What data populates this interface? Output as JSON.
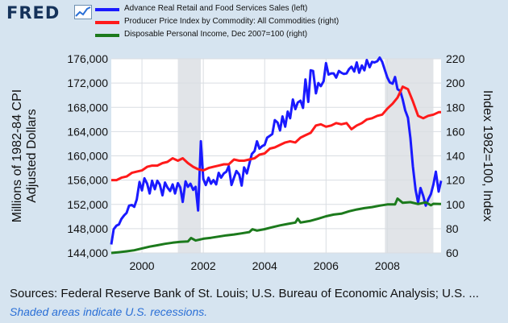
{
  "brand": {
    "name": "FRED",
    "logo_icon": "line-chart-icon"
  },
  "sources_text": "Sources: Federal Reserve Bank of St. Louis; U.S. Bureau of Economic Analysis; U.S. ...",
  "recession_note": "Shaded areas indicate U.S. recessions.",
  "colors": {
    "background": "#d6e4f0",
    "plot_background": "#ffffff",
    "recession": "#e1e4e8",
    "grid": "#d9dde2",
    "brand": "#15325a",
    "note": "#2a6fd6"
  },
  "chart_data": {
    "type": "line",
    "title": "",
    "xlabel": "",
    "ylabel": "Millions of 1982-84 CPI Adjusted Dollars",
    "y2label": "Index 1982=100, Index",
    "xlim": [
      1999.0,
      2009.75
    ],
    "ylim": [
      144000,
      176000
    ],
    "y2lim": [
      60,
      220
    ],
    "x_ticks": [
      2000,
      2002,
      2004,
      2006,
      2008
    ],
    "x_tick_labels": [
      "2000",
      "2002",
      "2004",
      "2006",
      "2008"
    ],
    "y_ticks": [
      144000,
      148000,
      152000,
      156000,
      160000,
      164000,
      168000,
      172000,
      176000
    ],
    "y_tick_labels": [
      "144,000",
      "148,000",
      "152,000",
      "156,000",
      "160,000",
      "164,000",
      "168,000",
      "172,000",
      "176,000"
    ],
    "y2_ticks": [
      60,
      80,
      100,
      120,
      140,
      160,
      180,
      200,
      220
    ],
    "y2_tick_labels": [
      "60",
      "80",
      "100",
      "120",
      "140",
      "160",
      "180",
      "200",
      "220"
    ],
    "grid": true,
    "legend_position": "top",
    "recessions": [
      [
        2001.17,
        2001.92
      ],
      [
        2007.92,
        2009.5
      ]
    ],
    "series": [
      {
        "name": "Advance Real Retail and Food Services Sales (left)",
        "axis": "left",
        "color": "#1a1aff",
        "x": [
          1999.0,
          1999.08,
          1999.17,
          1999.25,
          1999.33,
          1999.42,
          1999.5,
          1999.58,
          1999.67,
          1999.75,
          1999.83,
          1999.92,
          2000.0,
          2000.08,
          2000.17,
          2000.25,
          2000.33,
          2000.42,
          2000.5,
          2000.58,
          2000.67,
          2000.75,
          2000.83,
          2000.92,
          2001.0,
          2001.08,
          2001.17,
          2001.25,
          2001.33,
          2001.42,
          2001.5,
          2001.58,
          2001.67,
          2001.75,
          2001.83,
          2001.92,
          2002.0,
          2002.08,
          2002.17,
          2002.25,
          2002.33,
          2002.42,
          2002.5,
          2002.58,
          2002.67,
          2002.75,
          2002.83,
          2002.92,
          2003.0,
          2003.08,
          2003.17,
          2003.25,
          2003.33,
          2003.42,
          2003.5,
          2003.58,
          2003.67,
          2003.75,
          2003.83,
          2003.92,
          2004.0,
          2004.08,
          2004.17,
          2004.25,
          2004.33,
          2004.42,
          2004.5,
          2004.58,
          2004.67,
          2004.75,
          2004.83,
          2004.92,
          2005.0,
          2005.08,
          2005.17,
          2005.25,
          2005.33,
          2005.42,
          2005.5,
          2005.58,
          2005.67,
          2005.75,
          2005.83,
          2005.92,
          2006.0,
          2006.08,
          2006.17,
          2006.25,
          2006.33,
          2006.42,
          2006.5,
          2006.58,
          2006.67,
          2006.75,
          2006.83,
          2006.92,
          2007.0,
          2007.08,
          2007.17,
          2007.25,
          2007.33,
          2007.42,
          2007.5,
          2007.58,
          2007.67,
          2007.75,
          2007.83,
          2007.92,
          2008.0,
          2008.08,
          2008.17,
          2008.25,
          2008.33,
          2008.42,
          2008.5,
          2008.58,
          2008.67,
          2008.75,
          2008.83,
          2008.92,
          2009.0,
          2009.08,
          2009.17,
          2009.25,
          2009.33,
          2009.42,
          2009.5,
          2009.58,
          2009.67,
          2009.75
        ],
        "values": [
          145400,
          147900,
          148500,
          148700,
          149600,
          150200,
          150600,
          151800,
          151900,
          151600,
          152800,
          155700,
          154300,
          156300,
          155400,
          153800,
          155900,
          154500,
          155900,
          155300,
          153500,
          155600,
          154800,
          154200,
          155300,
          153800,
          155500,
          154800,
          152400,
          155800,
          154900,
          155400,
          154400,
          154900,
          151000,
          162400,
          156200,
          155200,
          156400,
          155400,
          156000,
          155300,
          157200,
          156400,
          157100,
          157400,
          158300,
          155200,
          156400,
          157500,
          156900,
          155100,
          158100,
          157100,
          158700,
          160300,
          160800,
          162400,
          161200,
          161600,
          161800,
          163000,
          163300,
          163600,
          165900,
          165500,
          164200,
          166500,
          164800,
          167300,
          166200,
          169300,
          167700,
          168800,
          169100,
          167900,
          172600,
          168900,
          174100,
          174000,
          170300,
          172000,
          171500,
          172300,
          175300,
          173400,
          173600,
          173600,
          172900,
          174000,
          173700,
          173500,
          173600,
          174300,
          174700,
          173900,
          175400,
          173700,
          174900,
          174100,
          175800,
          174600,
          175500,
          175400,
          175600,
          176200,
          175500,
          174100,
          172900,
          172100,
          171900,
          173000,
          171000,
          170700,
          169300,
          167500,
          166300,
          162900,
          158300,
          154400,
          152300,
          154700,
          153400,
          151800,
          152800,
          153700,
          155300,
          157400,
          154100,
          155900
        ]
      },
      {
        "name": "Producer Price Index by Commodity: All Commodities (right)",
        "axis": "right",
        "color": "#ff1a1a",
        "x": [
          1999.0,
          1999.17,
          1999.33,
          1999.5,
          1999.67,
          1999.83,
          2000.0,
          2000.17,
          2000.33,
          2000.5,
          2000.67,
          2000.83,
          2001.0,
          2001.17,
          2001.33,
          2001.5,
          2001.67,
          2001.83,
          2002.0,
          2002.17,
          2002.33,
          2002.5,
          2002.67,
          2002.83,
          2003.0,
          2003.17,
          2003.33,
          2003.5,
          2003.67,
          2003.83,
          2004.0,
          2004.17,
          2004.33,
          2004.5,
          2004.67,
          2004.83,
          2005.0,
          2005.17,
          2005.33,
          2005.5,
          2005.67,
          2005.83,
          2006.0,
          2006.17,
          2006.33,
          2006.5,
          2006.67,
          2006.83,
          2007.0,
          2007.17,
          2007.33,
          2007.5,
          2007.67,
          2007.83,
          2008.0,
          2008.17,
          2008.33,
          2008.5,
          2008.67,
          2008.83,
          2009.0,
          2009.17,
          2009.33,
          2009.5,
          2009.67,
          2009.75
        ],
        "values": [
          120,
          120,
          122,
          123,
          126,
          127,
          128,
          131,
          132,
          132,
          134,
          135,
          138,
          136,
          138,
          134,
          131,
          129,
          128,
          130,
          131,
          132,
          133,
          133,
          137,
          136,
          136,
          137,
          138,
          141,
          142,
          146,
          147,
          149,
          151,
          152,
          151,
          155,
          157,
          159,
          165,
          166,
          164,
          165,
          167,
          166,
          167,
          162,
          165,
          167,
          170,
          171,
          173,
          174,
          179,
          183,
          188,
          197,
          195,
          185,
          173,
          171,
          173,
          174,
          176,
          176
        ]
      },
      {
        "name": "Disposable Personal Income, Dec 2007=100 (right)",
        "axis": "right",
        "color": "#1c7a1c",
        "x": [
          1999.0,
          1999.25,
          1999.5,
          1999.75,
          2000.0,
          2000.25,
          2000.5,
          2000.75,
          2001.0,
          2001.25,
          2001.5,
          2001.6,
          2001.75,
          2002.0,
          2002.25,
          2002.5,
          2002.75,
          2003.0,
          2003.25,
          2003.5,
          2003.6,
          2003.75,
          2004.0,
          2004.25,
          2004.5,
          2004.75,
          2005.0,
          2005.08,
          2005.17,
          2005.5,
          2005.75,
          2006.0,
          2006.25,
          2006.5,
          2006.75,
          2007.0,
          2007.25,
          2007.5,
          2007.75,
          2008.0,
          2008.25,
          2008.33,
          2008.5,
          2008.75,
          2009.0,
          2009.25,
          2009.42,
          2009.5,
          2009.75
        ],
        "values": [
          60,
          60.6,
          61.3,
          62.2,
          63.7,
          65.2,
          66.3,
          67.5,
          68.4,
          69.1,
          69.5,
          72.3,
          70.2,
          71.7,
          72.5,
          73.5,
          74.5,
          75.2,
          76.1,
          77.2,
          79.5,
          78.4,
          79.6,
          81.2,
          82.7,
          83.9,
          85.0,
          88.2,
          85.0,
          86.5,
          88.3,
          90.2,
          91.6,
          92.3,
          94.3,
          95.8,
          96.9,
          97.8,
          99.0,
          100.0,
          100.0,
          104.8,
          101.3,
          101.8,
          100.3,
          101.7,
          99.3,
          100.5,
          100.3
        ]
      }
    ]
  }
}
